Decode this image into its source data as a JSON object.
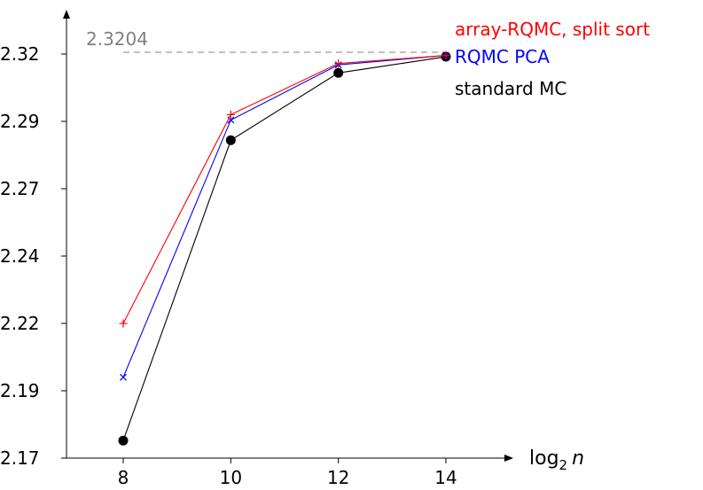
{
  "chart_data": {
    "type": "line",
    "xlabel": "log",
    "xlabel_sub": "2",
    "xlabel_var": "n",
    "x": [
      8,
      10,
      12,
      14
    ],
    "x_ticks": [
      "8",
      "10",
      "12",
      "14"
    ],
    "xlim": [
      6.8,
      15.6
    ],
    "y_ticks": [
      "2.17",
      "2.19",
      "2.22",
      "2.24",
      "2.27",
      "2.29",
      "2.32"
    ],
    "ylim": [
      2.17,
      2.3302
    ],
    "grid": false,
    "legend_position": "top-right",
    "reference_line": {
      "value": 2.3204,
      "label": "2.3204",
      "color": "#808080",
      "style": "dashed"
    },
    "series": [
      {
        "name": "array-RQMC, split sort",
        "color": "#ff0000",
        "marker": "plus",
        "values": [
          2.22,
          2.2975,
          2.3165,
          2.3195
        ]
      },
      {
        "name": "RQMC PCA",
        "color": "#0000ff",
        "marker": "cross",
        "values": [
          2.2,
          2.2955,
          2.316,
          2.3195
        ]
      },
      {
        "name": "standard MC",
        "color": "#000000",
        "marker": "dot",
        "values": [
          2.1765,
          2.288,
          2.313,
          2.319
        ]
      }
    ]
  }
}
